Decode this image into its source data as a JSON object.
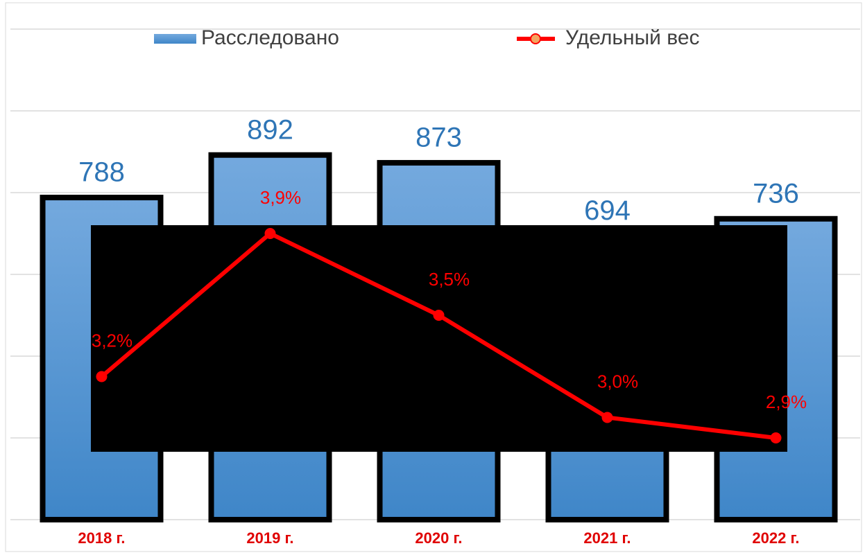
{
  "chart_data": {
    "type": "bar_line",
    "categories": [
      "2018 г.",
      "2019 г.",
      "2020 г.",
      "2021 г.",
      "2022 г."
    ],
    "series": [
      {
        "name": "Расследовано",
        "color": "#5b9bd5",
        "values": [
          788,
          892,
          873,
          694,
          736
        ]
      },
      {
        "name": "Удельный вес",
        "color": "#ff0000",
        "axis": "y2",
        "values": [
          3.2,
          3.9,
          3.5,
          3.0,
          2.9
        ],
        "value_labels": [
          "3,2%",
          "3,9%",
          "3,5%",
          "3,0%",
          "2,9%"
        ]
      }
    ],
    "ylim": [
      0,
      1200
    ],
    "yticks": [
      0,
      200,
      400,
      600,
      800,
      1000,
      1200
    ],
    "y2lim": [
      2.5,
      4.9
    ],
    "grid": true,
    "legend": "top"
  }
}
